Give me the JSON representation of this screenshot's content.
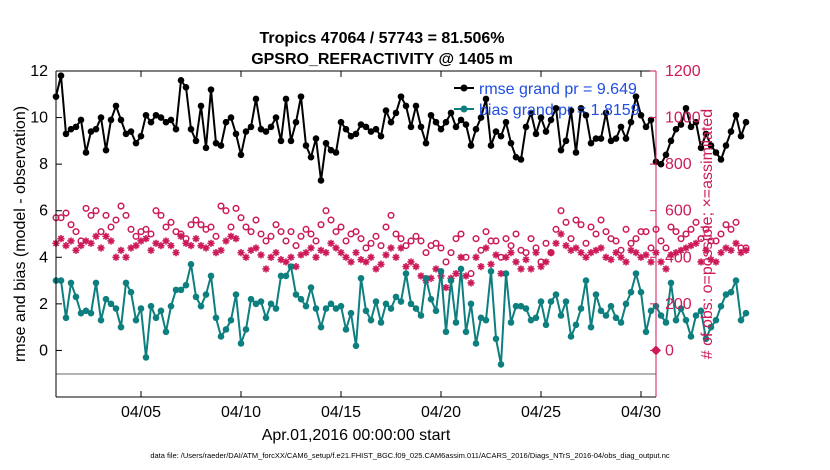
{
  "chart_data": {
    "type": "line",
    "title": "Tropics 47064 / 57743 = 81.506%",
    "subtitle": "GPSRO_REFRACTIVITY @ 1405 m",
    "xlabel": "Apr.01,2016 00:00:00 start",
    "ylabel": "rmse and bias (model - observation)",
    "ylabel_right": "# of obs: o=possible; ×=assimilated",
    "footnote": "data file: /Users/raeder/DAI/ATM_forcXX/CAM6_setup/f.e21.FHIST_BGC.f09_025.CAM6assim.011/ACARS_2016/Diags_NTrS_2016-04/obs_diag_output.nc",
    "xlim": [
      0.75,
      30.75
    ],
    "ylim": [
      -2,
      12
    ],
    "ylim_right": [
      -200,
      1200
    ],
    "xticks": [
      5,
      10,
      15,
      20,
      25,
      30
    ],
    "xtick_labels": [
      "04/05",
      "04/10",
      "04/15",
      "04/20",
      "04/25",
      "04/30"
    ],
    "yticks": [
      0,
      2,
      4,
      6,
      8,
      10,
      12
    ],
    "yticks_right": [
      0,
      200,
      400,
      600,
      800,
      1000,
      1200
    ],
    "x_start": 0.75,
    "x_step": 0.25,
    "colors": {
      "rmse": "#000000",
      "bias": "#0e7f7f",
      "obs": "#cc1a5a",
      "legend_text": "#1f4ee0",
      "zero_line": "#b3b3b3"
    },
    "series": [
      {
        "name": "rmse grand pr = 9.649",
        "axis": "left",
        "values": [
          10.9,
          11.8,
          9.3,
          9.5,
          9.6,
          9.9,
          8.5,
          9.4,
          9.5,
          10.0,
          8.6,
          9.9,
          10.5,
          9.9,
          9.3,
          9.4,
          8.9,
          9.2,
          10.1,
          9.8,
          10.1,
          10.0,
          9.8,
          9.9,
          9.5,
          11.6,
          11.3,
          9.5,
          9.0,
          10.5,
          8.7,
          11.2,
          8.9,
          8.8,
          9.8,
          10.0,
          9.3,
          8.4,
          9.4,
          9.6,
          10.8,
          9.5,
          9.4,
          9.6,
          10.0,
          9.0,
          10.8,
          9.0,
          9.8,
          10.9,
          8.8,
          8.3,
          9.1,
          7.3,
          8.9,
          8.6,
          8.5,
          9.8,
          9.5,
          9.2,
          9.3,
          9.7,
          9.6,
          9.4,
          9.5,
          9.2,
          10.3,
          9.8,
          10.2,
          10.9,
          10.5,
          9.6,
          10.5,
          9.6,
          8.9,
          10.1,
          9.8,
          9.5,
          9.8,
          10.2,
          9.6,
          9.9,
          9.7,
          8.8,
          9.5,
          10.0,
          10.8,
          8.8,
          9.4,
          9.2,
          9.8,
          8.9,
          8.3,
          8.2,
          9.6,
          10.2,
          9.3,
          10.0,
          9.4,
          9.9,
          10.4,
          8.6,
          9.0,
          10.3,
          8.5,
          10.4,
          10.1,
          8.9,
          9.1,
          9.1,
          10.2,
          9.0,
          9.1,
          9.6,
          9.1,
          9.8,
          10.9,
          10.1,
          9.6,
          9.9,
          8.1,
          8.0,
          8.4,
          9.0,
          9.5,
          9.7,
          10.4,
          9.6,
          9.8,
          8.7,
          9.3,
          8.8,
          8.5,
          8.2,
          8.8,
          9.4,
          10.1,
          9.2,
          9.8
        ]
      },
      {
        "name": "bias grand pr = 1.8159",
        "axis": "left",
        "values": [
          3.0,
          3.0,
          1.4,
          2.9,
          2.3,
          1.6,
          1.7,
          1.6,
          2.9,
          1.3,
          2.2,
          2.0,
          1.8,
          1.0,
          2.9,
          2.5,
          1.3,
          1.8,
          -0.3,
          1.9,
          1.4,
          1.7,
          0.8,
          1.9,
          2.6,
          2.6,
          2.8,
          3.7,
          2.3,
          1.9,
          2.4,
          3.2,
          1.4,
          0.6,
          0.9,
          1.3,
          2.4,
          0.3,
          0.9,
          2.2,
          2.0,
          2.1,
          1.4,
          2.0,
          1.8,
          3.2,
          3.2,
          3.6,
          2.4,
          2.2,
          1.9,
          2.7,
          1.8,
          1.0,
          1.8,
          2.0,
          1.8,
          1.9,
          0.9,
          1.6,
          0.2,
          3.1,
          1.7,
          1.3,
          2.1,
          1.2,
          2.0,
          1.8,
          2.3,
          2.1,
          3.3,
          2.0,
          1.8,
          1.5,
          3.1,
          2.2,
          1.7,
          3.4,
          0.8,
          3.0,
          1.2,
          3.5,
          0.8,
          2.0,
          0.3,
          1.4,
          1.3,
          3.4,
          0.5,
          -0.6,
          3.3,
          1.2,
          1.9,
          1.9,
          1.8,
          1.3,
          1.4,
          2.1,
          1.1,
          2.1,
          2.4,
          1.5,
          2.1,
          0.6,
          1.1,
          1.8,
          3.0,
          1.0,
          2.4,
          1.7,
          1.5,
          1.9,
          1.4,
          1.2,
          2.0,
          2.5,
          3.3,
          2.5,
          0.8,
          1.7,
          1.9,
          1.5,
          1.2,
          2.9,
          1.3,
          1.8,
          1.3,
          0.6,
          1.5,
          1.7,
          0.5,
          1.0,
          1.3,
          1.9,
          2.4,
          2.5,
          3.0,
          1.3,
          1.6
        ]
      },
      {
        "name": "possible",
        "axis": "right",
        "marker": "o",
        "values": [
          570,
          570,
          590,
          540,
          510,
          470,
          610,
          580,
          600,
          510,
          580,
          530,
          560,
          620,
          580,
          520,
          490,
          510,
          520,
          500,
          600,
          580,
          530,
          550,
          510,
          500,
          480,
          540,
          560,
          540,
          520,
          530,
          490,
          620,
          600,
          530,
          610,
          570,
          530,
          510,
          560,
          500,
          470,
          490,
          540,
          510,
          470,
          510,
          450,
          490,
          520,
          500,
          470,
          540,
          600,
          560,
          510,
          530,
          470,
          500,
          510,
          480,
          440,
          460,
          490,
          450,
          530,
          580,
          500,
          480,
          450,
          470,
          490,
          470,
          420,
          450,
          460,
          440,
          380,
          420,
          480,
          500,
          400,
          330,
          480,
          430,
          510,
          470,
          470,
          400,
          480,
          450,
          500,
          430,
          420,
          480,
          440,
          380,
          460,
          420,
          520,
          600,
          550,
          480,
          560,
          540,
          460,
          530,
          500,
          560,
          510,
          480,
          470,
          430,
          520,
          460,
          480,
          510,
          510,
          440,
          520,
          470,
          440,
          530,
          510,
          480,
          500,
          520,
          550,
          480,
          520,
          470,
          470,
          500,
          540,
          520,
          550,
          440,
          440
        ]
      },
      {
        "name": "assimilated",
        "axis": "right",
        "marker": "*",
        "values": [
          460,
          480,
          450,
          470,
          430,
          450,
          470,
          460,
          490,
          440,
          490,
          470,
          400,
          430,
          400,
          440,
          450,
          470,
          480,
          430,
          460,
          450,
          470,
          450,
          420,
          490,
          460,
          450,
          480,
          450,
          440,
          460,
          420,
          430,
          470,
          490,
          480,
          420,
          400,
          430,
          440,
          410,
          350,
          400,
          420,
          390,
          380,
          400,
          360,
          410,
          420,
          440,
          400,
          430,
          420,
          460,
          440,
          420,
          400,
          380,
          420,
          390,
          380,
          400,
          350,
          370,
          410,
          440,
          400,
          440,
          360,
          380,
          360,
          320,
          300,
          310,
          350,
          320,
          270,
          310,
          330,
          400,
          320,
          290,
          400,
          360,
          440,
          370,
          410,
          330,
          400,
          420,
          380,
          350,
          390,
          350,
          420,
          360,
          380,
          420,
          460,
          500,
          450,
          430,
          440,
          420,
          400,
          420,
          430,
          440,
          400,
          390,
          420,
          400,
          380,
          430,
          420,
          400,
          410,
          380,
          420,
          380,
          350,
          410,
          420,
          430,
          440,
          450,
          460,
          380,
          430,
          390,
          380,
          420,
          440,
          430,
          460,
          420,
          430
        ]
      }
    ]
  }
}
